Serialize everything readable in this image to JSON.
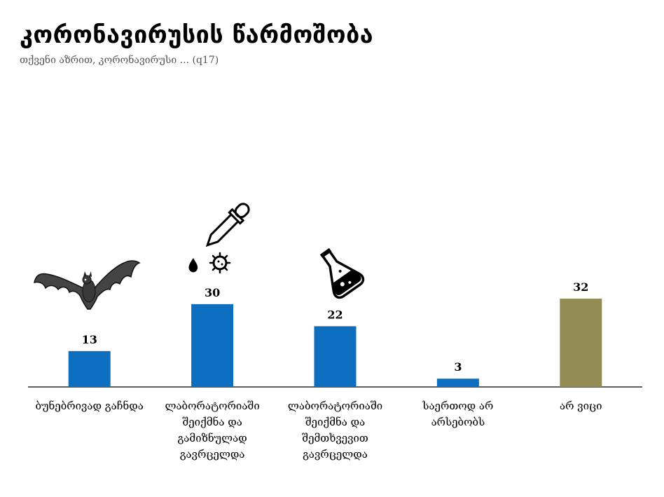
{
  "title": "კორონავირუსის წარმოშობა",
  "subtitle": "თქვენი აზრით, კორონავირუსი ... (q17)",
  "chart_data": {
    "type": "bar",
    "title": "კორონავირუსის წარმოშობა",
    "subtitle": "თქვენი აზრით, კორონავირუსი ... (q17)",
    "categories": [
      "ბუნებრივად გაჩნდა",
      "ლაბორატორიაში შეიქმნა და გამიზნულად გავრცელდა",
      "ლაბორატორიაში შეიქმნა და შემთხვევით გავრცელდა",
      "საერთოდ არ არსებობს",
      "არ ვიცი"
    ],
    "category_lines": [
      [
        "ბუნებრივად გაჩნდა"
      ],
      [
        "ლაბორატორიაში",
        "შეიქმნა და",
        "გამიზნულად",
        "გავრცელდა"
      ],
      [
        "ლაბორატორიაში",
        "შეიქმნა და",
        "შემთხვევით",
        "გავრცელდა"
      ],
      [
        "საერთოდ არ",
        "არსებობს"
      ],
      [
        "არ ვიცი"
      ]
    ],
    "values": [
      13,
      30,
      22,
      3,
      32
    ],
    "colors": [
      "#0d6ebf",
      "#0d6ebf",
      "#0d6ebf",
      "#0d6ebf",
      "#938d55"
    ],
    "icons": [
      "bat-icon",
      "dropper-virus-icon",
      "flask-icon",
      "",
      ""
    ],
    "ylim": [
      0,
      32
    ],
    "grid": false,
    "legend": "none",
    "data_labels": true
  }
}
